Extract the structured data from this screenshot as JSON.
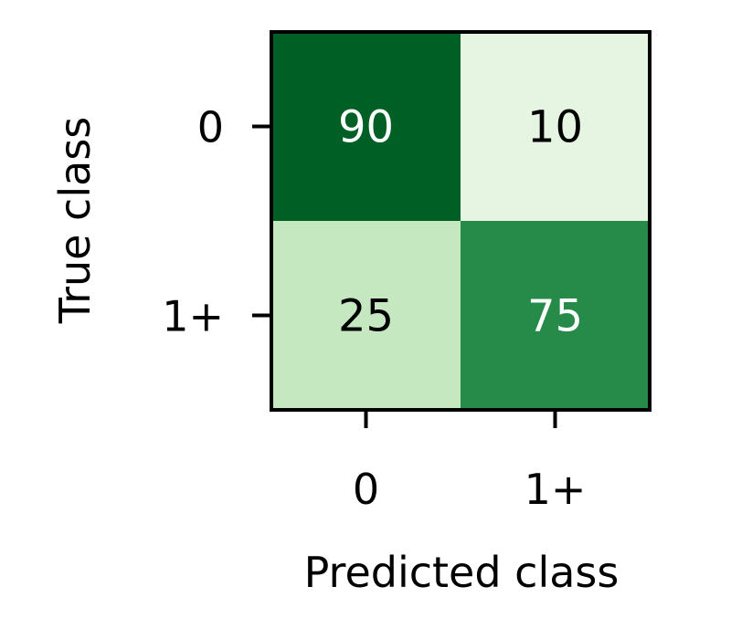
{
  "chart_data": {
    "type": "heatmap",
    "title": "",
    "xlabel": "Predicted class",
    "ylabel": "True class",
    "x_categories": [
      "0",
      "1+"
    ],
    "y_categories": [
      "0",
      "1+"
    ],
    "values": [
      [
        90,
        10
      ],
      [
        25,
        75
      ]
    ],
    "colormap": "Greens",
    "colors": {
      "cell_0_0": "#005f24",
      "cell_0_1": "#e6f4e2",
      "cell_1_0": "#c6e8c0",
      "cell_1_1": "#268b48",
      "text_on_dark": "#ffffff",
      "text_on_light": "#000000"
    },
    "colorbar": false,
    "grid": false
  }
}
